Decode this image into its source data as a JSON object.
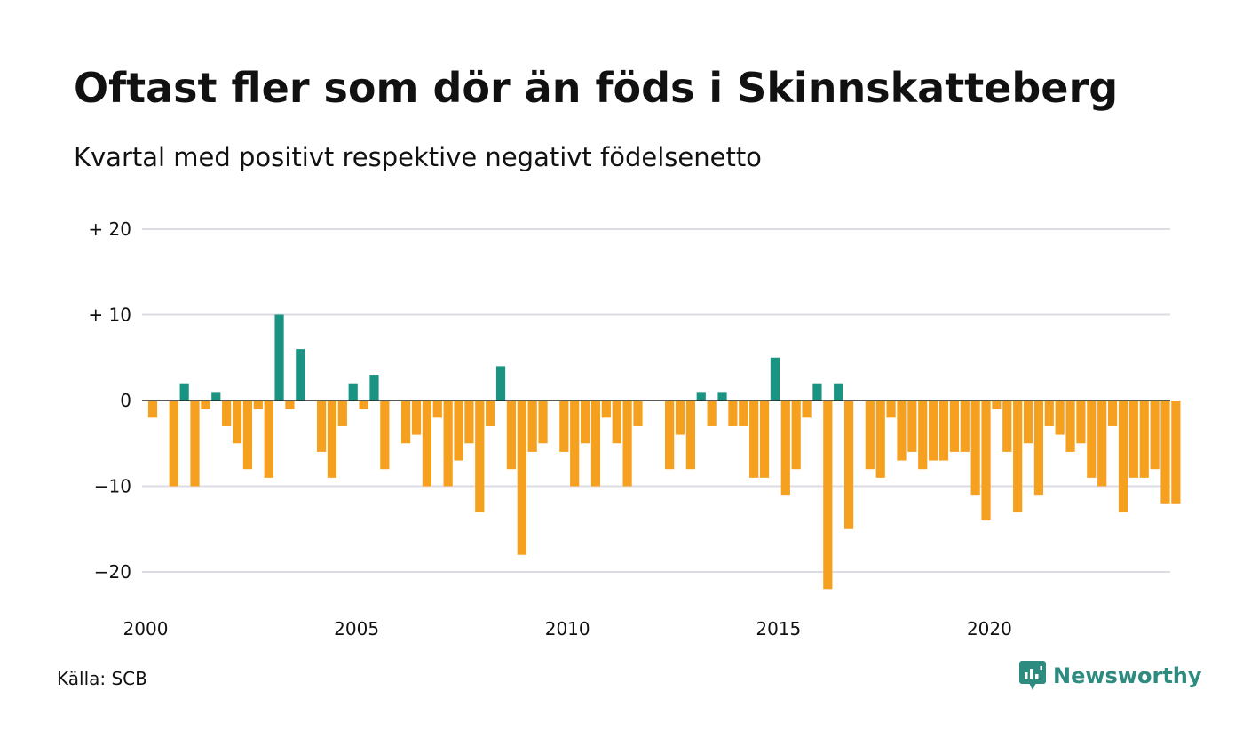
{
  "header": {
    "title": "Oftast fler som dör än föds i Skinnskatteberg",
    "subtitle": "Kvartal med positivt respektive negativt födelsenetto"
  },
  "footer": {
    "source": "Källa: SCB",
    "brand": "Newsworthy",
    "brand_icon": "newsworthy-chart-bubble-icon"
  },
  "colors": {
    "positive": "#1a9482",
    "negative": "#f5a01e",
    "grid": "#dcdce4",
    "zero_line": "#222222",
    "brand": "#2d8b80"
  },
  "chart_data": {
    "type": "bar",
    "title": "Oftast fler som dör än föds i Skinnskatteberg",
    "subtitle": "Kvartal med positivt respektive negativt födelsenetto",
    "xlabel": "",
    "ylabel": "",
    "x_start": "2000 Q1",
    "x_ticks": [
      "2000",
      "2005",
      "2010",
      "2015",
      "2020"
    ],
    "y_ticks": [
      20,
      10,
      0,
      -10,
      -20
    ],
    "y_tick_labels": [
      "+ 20",
      "+ 10",
      "0",
      "−10",
      "−20"
    ],
    "ylim": [
      -24,
      20
    ],
    "grid": true,
    "legend": "none",
    "series": [
      {
        "values": [
          -2,
          0,
          -10,
          2,
          -10,
          -1,
          1,
          -3,
          -5,
          -8,
          -1,
          -9,
          10,
          -1,
          6,
          0,
          -6,
          -9,
          -3,
          2,
          -1,
          3,
          -8,
          0,
          -5,
          -4,
          -10,
          -2,
          -10,
          -7,
          -5,
          -13,
          -3,
          4,
          -8,
          -18,
          -6,
          -5,
          0,
          -6,
          -10,
          -5,
          -10,
          -2,
          -5,
          -10,
          -3,
          0,
          0,
          -8,
          -4,
          -8,
          1,
          -3,
          1,
          -3,
          -3,
          -9,
          -9,
          5,
          -11,
          -8,
          -2,
          2,
          -22,
          2,
          -15,
          0,
          -8,
          -9,
          -2,
          -7,
          -6,
          -8,
          -7,
          -7,
          -6,
          -6,
          -11,
          -14,
          -1,
          -6,
          -13,
          -5,
          -11,
          -3,
          -4,
          -6,
          -5,
          -9,
          -10,
          -3,
          -13,
          -9,
          -9,
          -8,
          -12,
          -12
        ]
      }
    ]
  }
}
